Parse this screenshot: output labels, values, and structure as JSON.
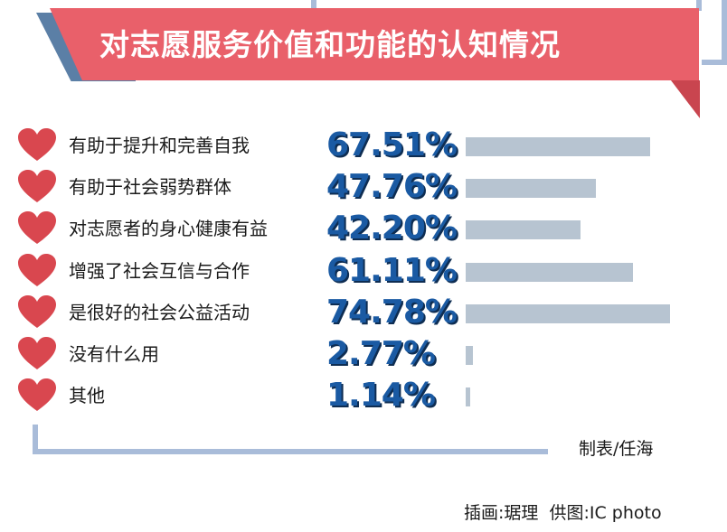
{
  "header": {
    "title": "对志愿服务价值和功能的认知情况"
  },
  "chart_data": {
    "type": "bar",
    "title": "对志愿服务价值和功能的认知情况",
    "categories": [
      "有助于提升和完善自我",
      "有助于社会弱势群体",
      "对志愿者的身心健康有益",
      "增强了社会互信与合作",
      "是很好的社会公益活动",
      "没有什么用",
      "其他"
    ],
    "values": [
      67.51,
      47.76,
      42.2,
      61.11,
      74.78,
      2.77,
      1.14
    ],
    "value_labels": [
      "67.51%",
      "47.76%",
      "42.20%",
      "61.11%",
      "74.78%",
      "2.77%",
      "1.14%"
    ],
    "unit": "%",
    "orientation": "horizontal",
    "colors": {
      "bar": "#b7c4d1",
      "value_text": "#1a5aa3",
      "heart": "#d9474f",
      "banner": "#e9606a"
    }
  },
  "icons": {
    "row_marker": "heart-icon"
  },
  "credits": {
    "chart_by": "制表/任海",
    "illustration": "插画:琚理  供图:IC photo"
  }
}
